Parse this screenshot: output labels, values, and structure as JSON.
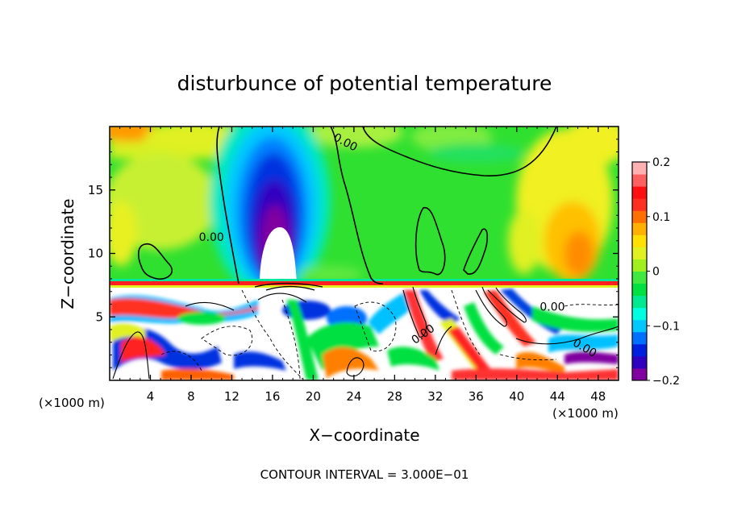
{
  "chart_data": {
    "type": "heatmap",
    "title": "disturbunce of potential temperature",
    "xlabel": "X−coordinate",
    "ylabel": "Z−coordinate",
    "x_unit_left": "(×1000 m)",
    "x_unit_right": "(×1000 m)",
    "footer": "CONTOUR INTERVAL = 3.000E−01",
    "xlim": [
      0,
      50
    ],
    "ylim": [
      0,
      20
    ],
    "x_ticks": [
      4,
      8,
      12,
      16,
      20,
      24,
      28,
      32,
      36,
      40,
      44,
      48
    ],
    "x_tick_labels": [
      "4",
      "8",
      "12",
      "16",
      "20",
      "24",
      "28",
      "32",
      "36",
      "40",
      "44",
      "48"
    ],
    "y_ticks": [
      5,
      10,
      15
    ],
    "y_tick_labels": [
      "5",
      "10",
      "15"
    ],
    "colorbar": {
      "min": -0.2,
      "max": 0.2,
      "ticks": [
        0.2,
        0.1,
        0,
        -0.1,
        -0.2
      ],
      "tick_labels": [
        "0.2",
        "0.1",
        "0",
        "−0.1",
        "−0.2"
      ],
      "colors": [
        "#8000a0",
        "#3000c0",
        "#0020e0",
        "#0070ff",
        "#00c8ff",
        "#00ffe0",
        "#00e890",
        "#00e040",
        "#40e840",
        "#a0f020",
        "#e0f020",
        "#ffe000",
        "#ffb000",
        "#ff7000",
        "#ff3020",
        "#ff1010",
        "#ff6060",
        "#ffb0b0"
      ]
    },
    "contour_labels": [
      "0.00",
      "0.00",
      "0.00",
      "0.00",
      "0.00"
    ],
    "contour_label_positions": [
      [
        10,
        11
      ],
      [
        23,
        18.5
      ],
      [
        31,
        3.4
      ],
      [
        46.5,
        2.3
      ],
      [
        43.5,
        5.5
      ]
    ]
  }
}
